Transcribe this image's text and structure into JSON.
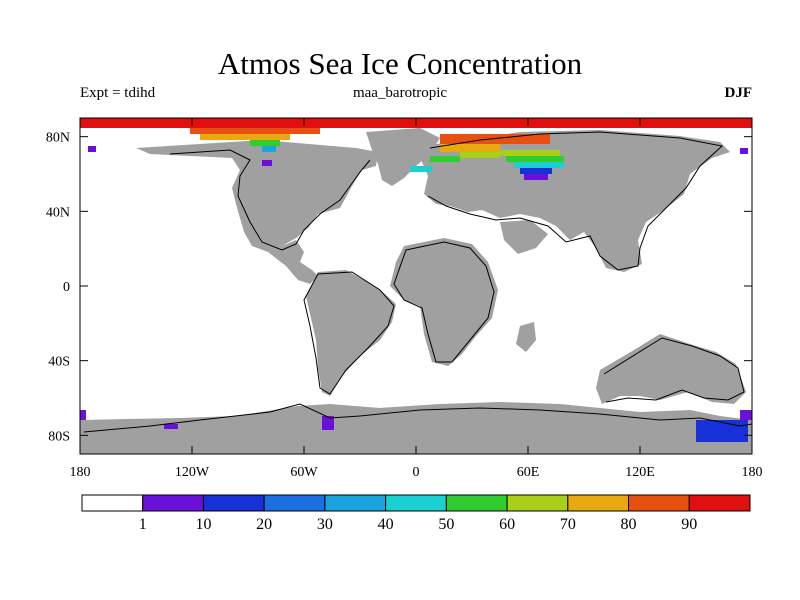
{
  "header": {
    "title": "Atmos Sea Ice Concentration",
    "left_label": "Expt = tdihd",
    "center_label": "maa_barotropic",
    "right_label": "DJF"
  },
  "axes": {
    "x_ticks": [
      {
        "label": "180",
        "lon": -180
      },
      {
        "label": "120W",
        "lon": -120
      },
      {
        "label": "60W",
        "lon": -60
      },
      {
        "label": "0",
        "lon": 0
      },
      {
        "label": "60E",
        "lon": 60
      },
      {
        "label": "120E",
        "lon": 120
      },
      {
        "label": "180",
        "lon": 180
      }
    ],
    "y_ticks": [
      {
        "label": "80N",
        "lat": 80
      },
      {
        "label": "40N",
        "lat": 40
      },
      {
        "label": "0",
        "lat": 0
      },
      {
        "label": "40S",
        "lat": -40
      },
      {
        "label": "80S",
        "lat": -80
      }
    ],
    "lon_range": [
      -180,
      180
    ],
    "lat_range": [
      -90,
      90
    ]
  },
  "colorbar": {
    "labels": [
      "1",
      "10",
      "20",
      "30",
      "40",
      "50",
      "60",
      "70",
      "80",
      "90"
    ],
    "colors": [
      "#ffffff",
      "#6a10d8",
      "#1830d8",
      "#1a70e0",
      "#1aa4e0",
      "#1ad0d0",
      "#30cc30",
      "#a8d018",
      "#e8a810",
      "#e85010",
      "#e01010"
    ]
  },
  "colors": {
    "land": "#a0a0a0",
    "ocean": "#ffffff",
    "coast": "#000000"
  }
}
